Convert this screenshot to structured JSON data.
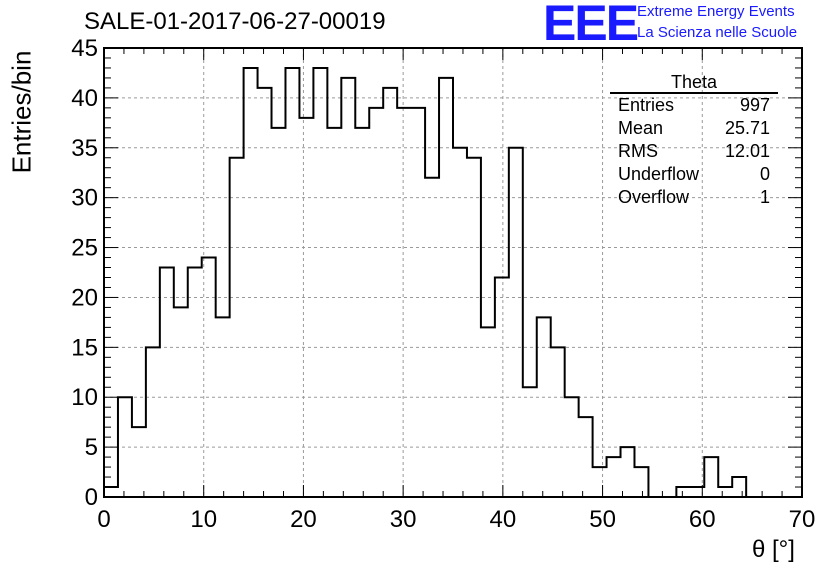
{
  "chart_data": {
    "type": "histogram",
    "title": "SALE-01-2017-06-27-00019",
    "xlabel": "θ [°]",
    "ylabel": "Entries/bin",
    "xlim": [
      0,
      70
    ],
    "ylim": [
      0,
      45
    ],
    "bin_width": 1.4,
    "x_ticks": [
      0,
      10,
      20,
      30,
      40,
      50,
      60,
      70
    ],
    "y_ticks": [
      0,
      5,
      10,
      15,
      20,
      25,
      30,
      35,
      40,
      45
    ],
    "grid": true,
    "values": [
      1,
      10,
      7,
      15,
      23,
      19,
      23,
      24,
      18,
      34,
      43,
      41,
      37,
      43,
      38,
      43,
      37,
      42,
      37,
      39,
      41,
      39,
      39,
      32,
      42,
      35,
      34,
      17,
      22,
      35,
      11,
      18,
      15,
      10,
      8,
      3,
      4,
      5,
      3,
      0,
      0,
      1,
      1,
      4,
      1,
      2,
      0,
      0,
      0,
      0
    ],
    "stats": {
      "name": "Theta",
      "rows": [
        {
          "label": "Entries",
          "value": "997"
        },
        {
          "label": "Mean",
          "value": "25.71"
        },
        {
          "label": "RMS",
          "value": "12.01"
        },
        {
          "label": "Underflow",
          "value": "0"
        },
        {
          "label": "Overflow",
          "value": "1"
        }
      ]
    },
    "colors": {
      "line": "#000000",
      "grid": "#9a9a9a",
      "logo": "#1a1aff"
    }
  },
  "logo": {
    "mark": "EEE",
    "line1": "Extreme Energy Events",
    "line2": "La Scienza nelle Scuole"
  }
}
